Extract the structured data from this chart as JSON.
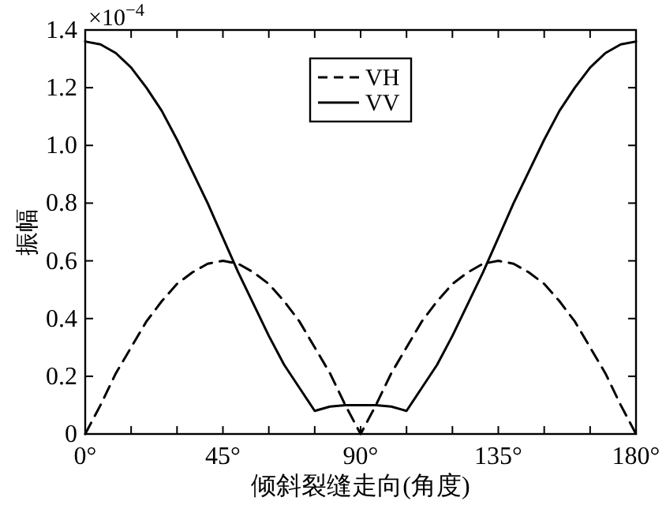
{
  "chart_data": {
    "type": "line",
    "xlabel": "倾斜裂缝走向(角度)",
    "ylabel": "振幅",
    "annotations": [
      "×10$^{−4}$"
    ],
    "x": [
      0,
      5,
      10,
      15,
      20,
      25,
      30,
      35,
      40,
      45,
      50,
      55,
      60,
      65,
      70,
      75,
      80,
      85,
      90,
      95,
      100,
      105,
      110,
      115,
      120,
      125,
      130,
      135,
      140,
      145,
      150,
      155,
      160,
      165,
      170,
      175,
      180
    ],
    "series": [
      {
        "name": "VH",
        "color": "#000000",
        "line_style": "dashed",
        "values": [
          0,
          0.1,
          0.21,
          0.3,
          0.39,
          0.46,
          0.52,
          0.56,
          0.59,
          0.6,
          0.59,
          0.56,
          0.52,
          0.46,
          0.39,
          0.3,
          0.21,
          0.1,
          0,
          0.1,
          0.21,
          0.3,
          0.39,
          0.46,
          0.52,
          0.56,
          0.59,
          0.6,
          0.59,
          0.56,
          0.52,
          0.46,
          0.39,
          0.3,
          0.21,
          0.1,
          0
        ]
      },
      {
        "name": "VV",
        "color": "#000000",
        "line_style": "solid",
        "values": [
          1.36,
          1.35,
          1.32,
          1.27,
          1.2,
          1.12,
          1.02,
          0.91,
          0.8,
          0.68,
          0.56,
          0.45,
          0.34,
          0.24,
          0.16,
          0.08,
          0.095,
          0.1,
          0.1,
          0.1,
          0.095,
          0.08,
          0.16,
          0.24,
          0.34,
          0.45,
          0.56,
          0.68,
          0.8,
          0.91,
          1.02,
          1.12,
          1.2,
          1.27,
          1.32,
          1.35,
          1.36
        ]
      }
    ],
    "xlim": [
      0,
      180
    ],
    "ylim": [
      0,
      1.4
    ],
    "xticks": [
      {
        "value": 0,
        "label": "0°"
      },
      {
        "value": 15,
        "label": null
      },
      {
        "value": 30,
        "label": null
      },
      {
        "value": 45,
        "label": "45°"
      },
      {
        "value": 60,
        "label": null
      },
      {
        "value": 75,
        "label": null
      },
      {
        "value": 90,
        "label": "90°"
      },
      {
        "value": 105,
        "label": null
      },
      {
        "value": 120,
        "label": null
      },
      {
        "value": 135,
        "label": "135°"
      },
      {
        "value": 150,
        "label": null
      },
      {
        "value": 165,
        "label": null
      },
      {
        "value": 180,
        "label": "180°"
      }
    ],
    "yticks": [
      0,
      0.2,
      0.4,
      0.6,
      0.8,
      {
        "value": 1,
        "label": "1.0"
      },
      1.2,
      1.4
    ],
    "legend": "top"
  }
}
